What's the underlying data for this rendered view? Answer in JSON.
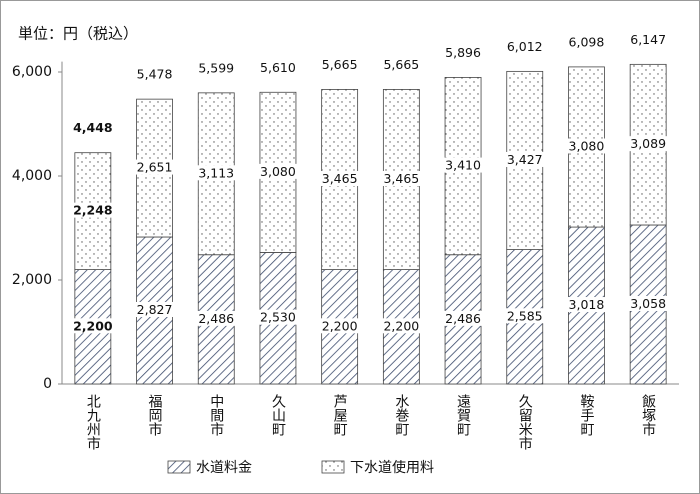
{
  "chart_data": {
    "type": "stacked_bar",
    "unit_label": "単位：円（税込）",
    "categories": [
      "北九州市",
      "福岡市",
      "中間市",
      "久山町",
      "芦屋町",
      "水巻町",
      "遠賀町",
      "久留米市",
      "鞍手町",
      "飯塚市"
    ],
    "series": [
      {
        "name": "水道料金",
        "color": "#3b4a6b",
        "pattern": "hatch",
        "values": [
          2200,
          2827,
          2486,
          2530,
          2200,
          2200,
          2486,
          2585,
          3018,
          3058
        ],
        "value_labels": [
          "2,200",
          "2,827",
          "2,486",
          "2,530",
          "2,200",
          "2,200",
          "2,486",
          "2,585",
          "3,018",
          "3,058"
        ]
      },
      {
        "name": "下水道使用料",
        "color": "#555555",
        "pattern": "dots",
        "values": [
          2248,
          2651,
          3113,
          3080,
          3465,
          3465,
          3410,
          3427,
          3080,
          3089
        ],
        "value_labels": [
          "2,248",
          "2,651",
          "3,113",
          "3,080",
          "3,465",
          "3,465",
          "3,410",
          "3,427",
          "3,080",
          "3,089"
        ]
      }
    ],
    "totals": [
      4448,
      5478,
      5599,
      5610,
      5665,
      5665,
      5896,
      6012,
      6098,
      6147
    ],
    "total_labels": [
      "4,448",
      "5,478",
      "5,599",
      "5,610",
      "5,665",
      "5,665",
      "5,896",
      "6,012",
      "6,098",
      "6,147"
    ],
    "highlight_index": 0,
    "highlight_color": "#e0201b",
    "ylim": [
      0,
      6200
    ],
    "yticks": [
      0,
      {
        "value": 2000,
        "label": "2,000"
      },
      {
        "value": 4000,
        "label": "4,000"
      },
      {
        "value": 6000,
        "label": "6,000"
      }
    ],
    "legend": "bottom"
  }
}
